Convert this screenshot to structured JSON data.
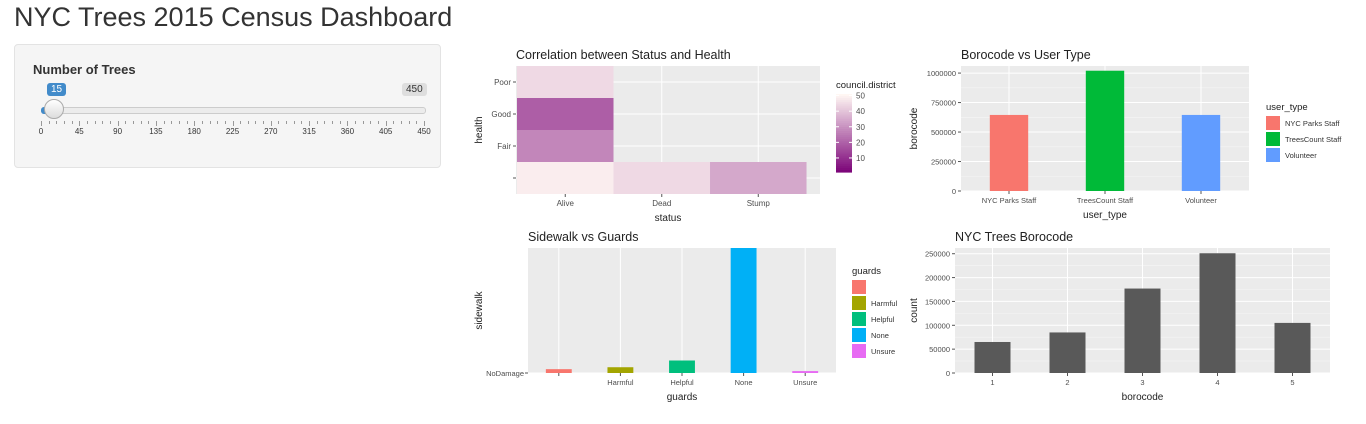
{
  "header": {
    "title": "NYC Trees 2015 Census Dashboard"
  },
  "sidebar": {
    "slider": {
      "label": "Number of Trees",
      "min": 0,
      "max": 450,
      "value": 15,
      "value_text": "15",
      "max_text": "450",
      "ticks": [
        "0",
        "45",
        "90",
        "135",
        "180",
        "225",
        "270",
        "315",
        "360",
        "405",
        "450"
      ]
    }
  },
  "chart_data": [
    {
      "id": "status-health",
      "type": "heatmap",
      "title": "Correlation between Status and Health",
      "xlabel": "status",
      "ylabel": "health",
      "x_categories": [
        "Alive",
        "Dead",
        "Stump"
      ],
      "y_categories": [
        "",
        "Fair",
        "Good",
        "Poor"
      ],
      "cells": [
        {
          "x": "Alive",
          "y": "",
          "value": 49
        },
        {
          "x": "Alive",
          "y": "Fair",
          "value": 28
        },
        {
          "x": "Alive",
          "y": "Good",
          "value": 20
        },
        {
          "x": "Alive",
          "y": "Poor",
          "value": 45
        },
        {
          "x": "Dead",
          "y": "",
          "value": 45
        },
        {
          "x": "Stump",
          "y": "",
          "value": 35
        }
      ],
      "legend": {
        "title": "council.district",
        "ticks": [
          10,
          20,
          30,
          40,
          50
        ],
        "range": [
          1,
          51
        ],
        "low_color": "#7a0177",
        "high_color": "#fff7f3"
      }
    },
    {
      "id": "borocode-usertype",
      "type": "bar",
      "title": "Borocode vs User Type",
      "xlabel": "user_type",
      "ylabel": "borocode",
      "categories": [
        "NYC Parks Staff",
        "TreesCount Staff",
        "Volunteer"
      ],
      "values": [
        645000,
        1020000,
        645000
      ],
      "colors": [
        "#F8766D",
        "#00BA38",
        "#619CFF"
      ],
      "ylim": [
        0,
        1060000
      ],
      "yticks": [
        0,
        250000,
        500000,
        750000,
        1000000
      ],
      "ytick_labels": [
        "0",
        "250000",
        "500000",
        "750000",
        "1000000"
      ],
      "legend": {
        "title": "user_type",
        "entries": [
          "NYC Parks Staff",
          "TreesCount Staff",
          "Volunteer"
        ]
      }
    },
    {
      "id": "sidewalk-guards",
      "type": "bar",
      "title": "Sidewalk vs Guards",
      "xlabel": "guards",
      "ylabel": "sidewalk",
      "categories": [
        "",
        "Harmful",
        "Helpful",
        "None",
        "Unsure"
      ],
      "x_labels": [
        "",
        "Harmful",
        "Helpful",
        "None",
        "Unsure"
      ],
      "values": [
        4,
        6,
        13,
        130,
        2
      ],
      "colors": [
        "#F8766D",
        "#A3A500",
        "#00BF7D",
        "#00B0F6",
        "#E76BF3"
      ],
      "ylim": [
        0,
        130
      ],
      "ytick_label": "NoDamage",
      "legend": {
        "title": "guards",
        "entries": [
          "",
          "Harmful",
          "Helpful",
          "None",
          "Unsure"
        ]
      }
    },
    {
      "id": "trees-borocode",
      "type": "bar",
      "title": "NYC Trees Borocode",
      "xlabel": "borocode",
      "ylabel": "count",
      "categories": [
        "1",
        "2",
        "3",
        "4",
        "5"
      ],
      "values": [
        65000,
        85000,
        177000,
        251000,
        105000
      ],
      "colors": [
        "#595959"
      ],
      "ylim": [
        0,
        262000
      ],
      "yticks": [
        0,
        50000,
        100000,
        150000,
        200000,
        250000
      ],
      "ytick_labels": [
        "0",
        "50000",
        "100000",
        "150000",
        "200000",
        "250000"
      ]
    }
  ]
}
